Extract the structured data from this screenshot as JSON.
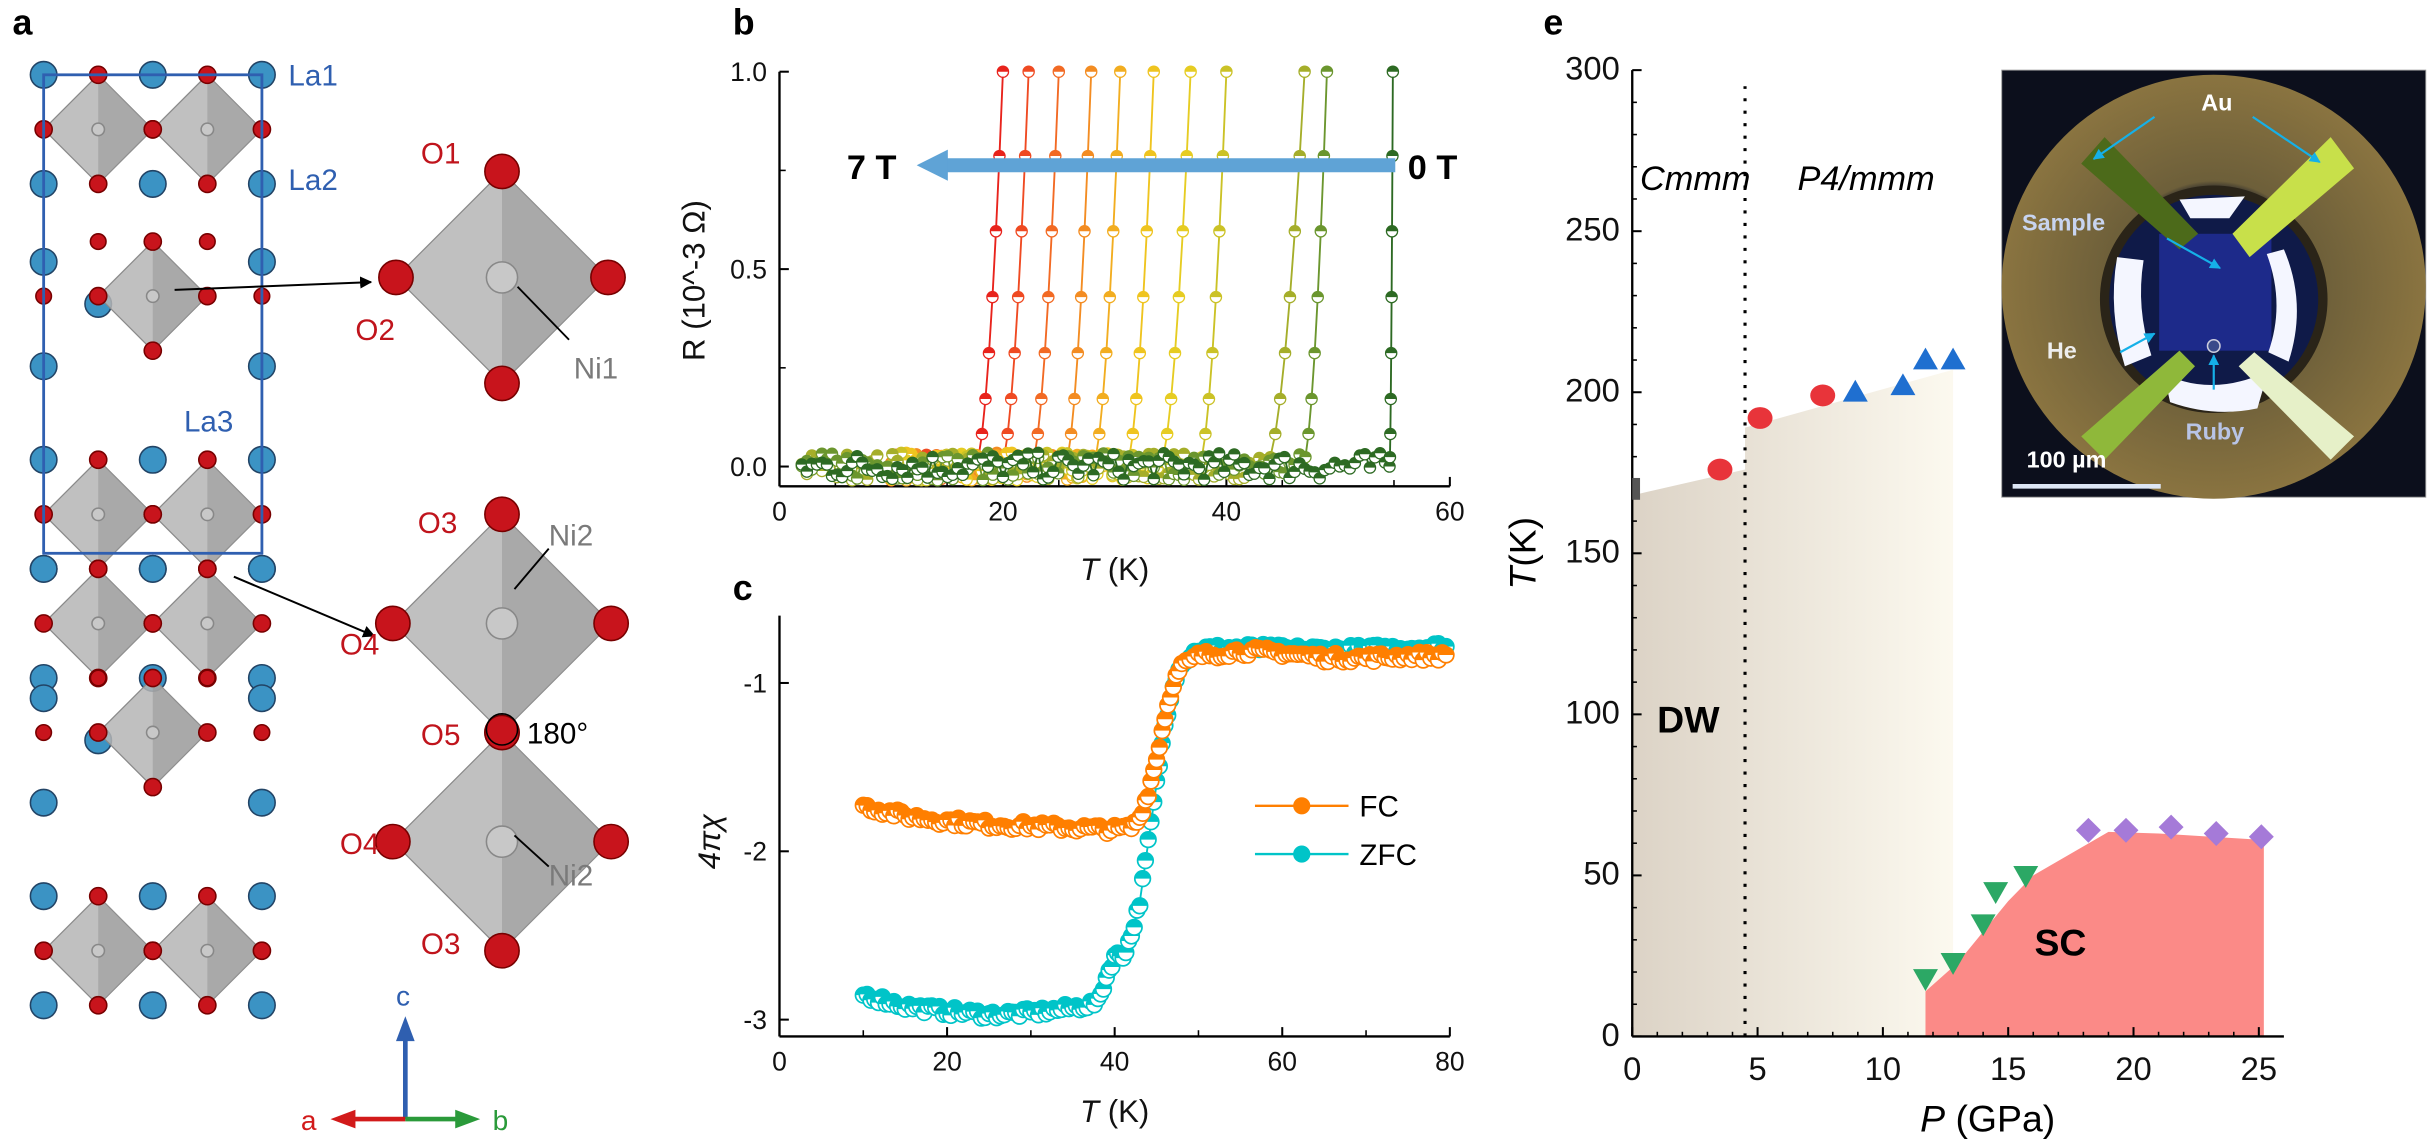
{
  "panel_letters": {
    "a": "a",
    "b": "b",
    "c": "c",
    "e": "e"
  },
  "panel_a": {
    "labels": {
      "La1": "La1",
      "La2": "La2",
      "La3": "La3",
      "O1": "O1",
      "O2": "O2",
      "Ni1": "Ni1",
      "O3_top": "O3",
      "Ni2_top": "Ni2",
      "O4_top": "O4",
      "O5": "O5",
      "angle": "180°",
      "O4_bottom": "O4",
      "Ni2_bottom": "Ni2",
      "O3_bottom": "O3"
    },
    "axes": {
      "a": "a",
      "b": "b",
      "c": "c"
    },
    "colors": {
      "La": "#3b93c4",
      "O": "#c8141c",
      "Ni": "#c8c8c8",
      "octahedron": "#b5b5b5",
      "cell": "#2f5fb0"
    }
  },
  "chart_data": [
    {
      "panel": "b",
      "type": "line",
      "xlabel": "T (K)",
      "ylabel": "R (10^-3 Ω)",
      "ylabel_parts": {
        "var": "R",
        "unit_pre": "(10",
        "exp": "−3",
        "unit_post": " Ω)"
      },
      "xlabel_parts": {
        "var": "T",
        "unit": " (K)"
      },
      "xlim": [
        0,
        60
      ],
      "ylim": [
        -0.05,
        1.0
      ],
      "xticks": [
        "0",
        "20",
        "40",
        "60"
      ],
      "yticks": [
        "0.0",
        "0.5",
        "1.0"
      ],
      "annotations": {
        "high_field": "7 T",
        "zero_field": "0 T"
      },
      "arrow_color": "#5fa3d6",
      "series": [
        {
          "transition_K": [
            17.5,
            20.0
          ],
          "color": "#e8231c"
        },
        {
          "transition_K": [
            19.8,
            22.3
          ],
          "color": "#ef4a22"
        },
        {
          "transition_K": [
            22.5,
            25.0
          ],
          "color": "#f26a24"
        },
        {
          "transition_K": [
            25.5,
            27.9
          ],
          "color": "#f38c22"
        },
        {
          "transition_K": [
            28.0,
            30.5
          ],
          "color": "#f2ad20"
        },
        {
          "transition_K": [
            31.0,
            33.5
          ],
          "color": "#efc41f"
        },
        {
          "transition_K": [
            34.0,
            36.8
          ],
          "color": "#e6cc22"
        },
        {
          "transition_K": [
            37.5,
            40.0
          ],
          "color": "#cbc226"
        },
        {
          "transition_K": [
            43.5,
            47.0
          ],
          "color": "#a5ae2a"
        },
        {
          "transition_K": [
            46.8,
            49.0
          ],
          "color": "#6b962e"
        },
        {
          "transition_K": [
            54.6,
            54.9
          ],
          "color": "#2d6a23"
        }
      ]
    },
    {
      "panel": "c",
      "type": "line",
      "xlabel": "T (K)",
      "xlabel_parts": {
        "var": "T",
        "unit": " (K)"
      },
      "ylabel": "4πχ",
      "xlim": [
        0,
        80
      ],
      "ylim": [
        -3.1,
        -0.6
      ],
      "xticks": [
        "0",
        "20",
        "40",
        "60",
        "80"
      ],
      "yticks": [
        "-1",
        "-2",
        "-3"
      ],
      "legend_position": "right",
      "series": [
        {
          "name": "FC",
          "color": "#ff7f00",
          "points": [
            [
              10,
              -1.73
            ],
            [
              15,
              -1.79
            ],
            [
              20,
              -1.82
            ],
            [
              25,
              -1.84
            ],
            [
              30,
              -1.85
            ],
            [
              35,
              -1.86
            ],
            [
              40,
              -1.87
            ],
            [
              42,
              -1.86
            ],
            [
              43,
              -1.8
            ],
            [
              44,
              -1.65
            ],
            [
              45,
              -1.45
            ],
            [
              46,
              -1.2
            ],
            [
              47,
              -1.0
            ],
            [
              48,
              -0.9
            ],
            [
              50,
              -0.84
            ],
            [
              55,
              -0.81
            ],
            [
              60,
              -0.82
            ],
            [
              65,
              -0.85
            ],
            [
              70,
              -0.85
            ],
            [
              75,
              -0.84
            ],
            [
              80,
              -0.84
            ]
          ]
        },
        {
          "name": "ZFC",
          "color": "#00c4c8",
          "points": [
            [
              10,
              -2.85
            ],
            [
              15,
              -2.92
            ],
            [
              20,
              -2.95
            ],
            [
              25,
              -2.97
            ],
            [
              30,
              -2.96
            ],
            [
              35,
              -2.93
            ],
            [
              38,
              -2.9
            ],
            [
              39,
              -2.75
            ],
            [
              40,
              -2.62
            ],
            [
              41,
              -2.62
            ],
            [
              42,
              -2.5
            ],
            [
              43,
              -2.3
            ],
            [
              44,
              -1.95
            ],
            [
              45,
              -1.6
            ],
            [
              46,
              -1.25
            ],
            [
              47,
              -1.0
            ],
            [
              48,
              -0.88
            ],
            [
              50,
              -0.8
            ],
            [
              55,
              -0.79
            ],
            [
              60,
              -0.8
            ],
            [
              70,
              -0.8
            ],
            [
              80,
              -0.78
            ]
          ]
        }
      ]
    },
    {
      "panel": "e",
      "type": "scatter",
      "xlabel": "P (GPa)",
      "xlabel_parts": {
        "var": "P",
        "unit": " (GPa)"
      },
      "ylabel": "T (K)",
      "ylabel_parts": {
        "var": "T",
        "unit": "(K)"
      },
      "xlim": [
        0,
        26
      ],
      "ylim": [
        0,
        300
      ],
      "xticks": [
        "0",
        "5",
        "10",
        "15",
        "20",
        "25"
      ],
      "yticks": [
        "0",
        "50",
        "100",
        "150",
        "200",
        "250",
        "300"
      ],
      "phase_boundary_GPa": 4.5,
      "region_labels": {
        "left_phase": "Cmmm",
        "right_phase": "P4/mmm",
        "dw": "DW",
        "sc": "SC"
      },
      "regions": {
        "dw": {
          "colors": [
            "#dcd3c6",
            "#fcf9ef"
          ],
          "boundary": [
            [
              0,
              168
            ],
            [
              4.5,
              176
            ],
            [
              4.5,
              189
            ],
            [
              12.8,
              207
            ],
            [
              12.8,
              0
            ]
          ]
        },
        "sc": {
          "color": "#fb8a87",
          "boundary": [
            [
              11.7,
              14
            ],
            [
              13,
              23
            ],
            [
              15,
              42
            ],
            [
              16,
              50
            ],
            [
              19,
              63.5
            ],
            [
              21,
              63
            ],
            [
              25.2,
              61
            ],
            [
              25.2,
              0
            ]
          ]
        }
      },
      "series": [
        {
          "marker": "square",
          "color": "#555555",
          "points": [
            [
              0,
              170
            ]
          ]
        },
        {
          "marker": "circle",
          "color": "#e8343a",
          "points": [
            [
              3.5,
              176
            ],
            [
              5.1,
              192
            ],
            [
              7.6,
              199
            ]
          ]
        },
        {
          "marker": "triangle-up",
          "color": "#1f6fd0",
          "points": [
            [
              8.9,
              200
            ],
            [
              10.8,
              202
            ],
            [
              11.7,
              210
            ],
            [
              12.8,
              210
            ]
          ]
        },
        {
          "marker": "triangle-down",
          "color": "#2ca865",
          "points": [
            [
              11.7,
              18
            ],
            [
              12.8,
              23
            ],
            [
              14,
              35
            ],
            [
              14.5,
              45
            ],
            [
              15.7,
              50
            ]
          ]
        },
        {
          "marker": "diamond",
          "color": "#a57ad8",
          "points": [
            [
              18.2,
              64
            ],
            [
              19.7,
              64
            ],
            [
              21.5,
              65
            ],
            [
              23.3,
              63
            ],
            [
              25.1,
              62
            ]
          ]
        }
      ],
      "inset": {
        "labels": {
          "au": "Au",
          "sample": "Sample",
          "he": "He",
          "ruby": "Ruby",
          "scale": "100 µm"
        },
        "arrow_color": "#15b0e8"
      }
    }
  ]
}
